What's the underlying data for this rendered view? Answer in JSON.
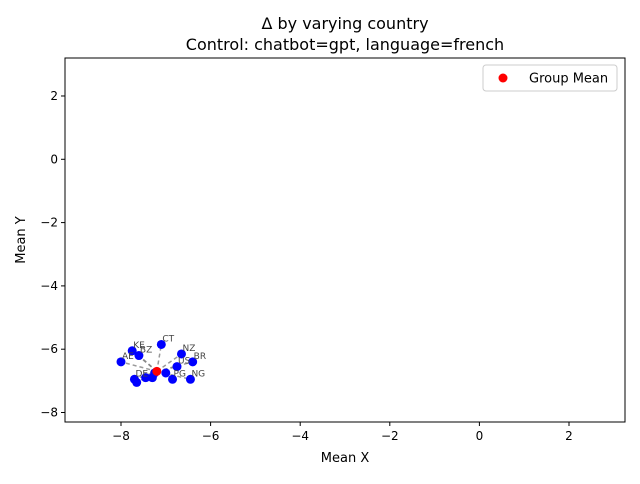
{
  "chart_data": {
    "type": "scatter",
    "title": "Δ by varying country",
    "subtitle": "Control: chatbot=gpt, language=french",
    "xlabel": "Mean X",
    "ylabel": "Mean Y",
    "xlim": [
      -9.25,
      3.25
    ],
    "ylim": [
      -8.3,
      3.2
    ],
    "xticks": [
      -8,
      -6,
      -4,
      -2,
      0,
      2
    ],
    "yticks": [
      -8,
      -6,
      -4,
      -2,
      0,
      2
    ],
    "xtick_labels": [
      "−8",
      "−6",
      "−4",
      "−2",
      "0",
      "2"
    ],
    "ytick_labels": [
      "−8",
      "−6",
      "−4",
      "−2",
      "0",
      "2"
    ],
    "grid": false,
    "legend_position": "top-right",
    "point_color": "#0000ff",
    "mean_color": "#ff0000",
    "line_color": "#808080",
    "group_mean": {
      "name": "Group Mean",
      "x": -7.2,
      "y": -6.7
    },
    "points": [
      {
        "label": "KE",
        "x": -7.75,
        "y": -6.05
      },
      {
        "label": "CT",
        "x": -7.1,
        "y": -5.85
      },
      {
        "label": "NZ",
        "x": -6.65,
        "y": -6.15
      },
      {
        "label": "BR",
        "x": -6.4,
        "y": -6.4
      },
      {
        "label": "AE",
        "x": -8.0,
        "y": -6.4
      },
      {
        "label": "BZ",
        "x": -7.6,
        "y": -6.2
      },
      {
        "label": "US",
        "x": -6.75,
        "y": -6.55
      },
      {
        "label": "NG",
        "x": -6.45,
        "y": -6.95
      },
      {
        "label": "PG",
        "x": -6.85,
        "y": -6.95
      },
      {
        "label": "DE",
        "x": -7.7,
        "y": -6.95
      },
      {
        "label": "",
        "x": -7.65,
        "y": -7.05
      },
      {
        "label": "",
        "x": -7.45,
        "y": -6.9
      },
      {
        "label": "",
        "x": -7.3,
        "y": -6.9
      },
      {
        "label": "",
        "x": -7.0,
        "y": -6.75
      },
      {
        "label": "",
        "x": -7.25,
        "y": -6.75
      }
    ]
  }
}
